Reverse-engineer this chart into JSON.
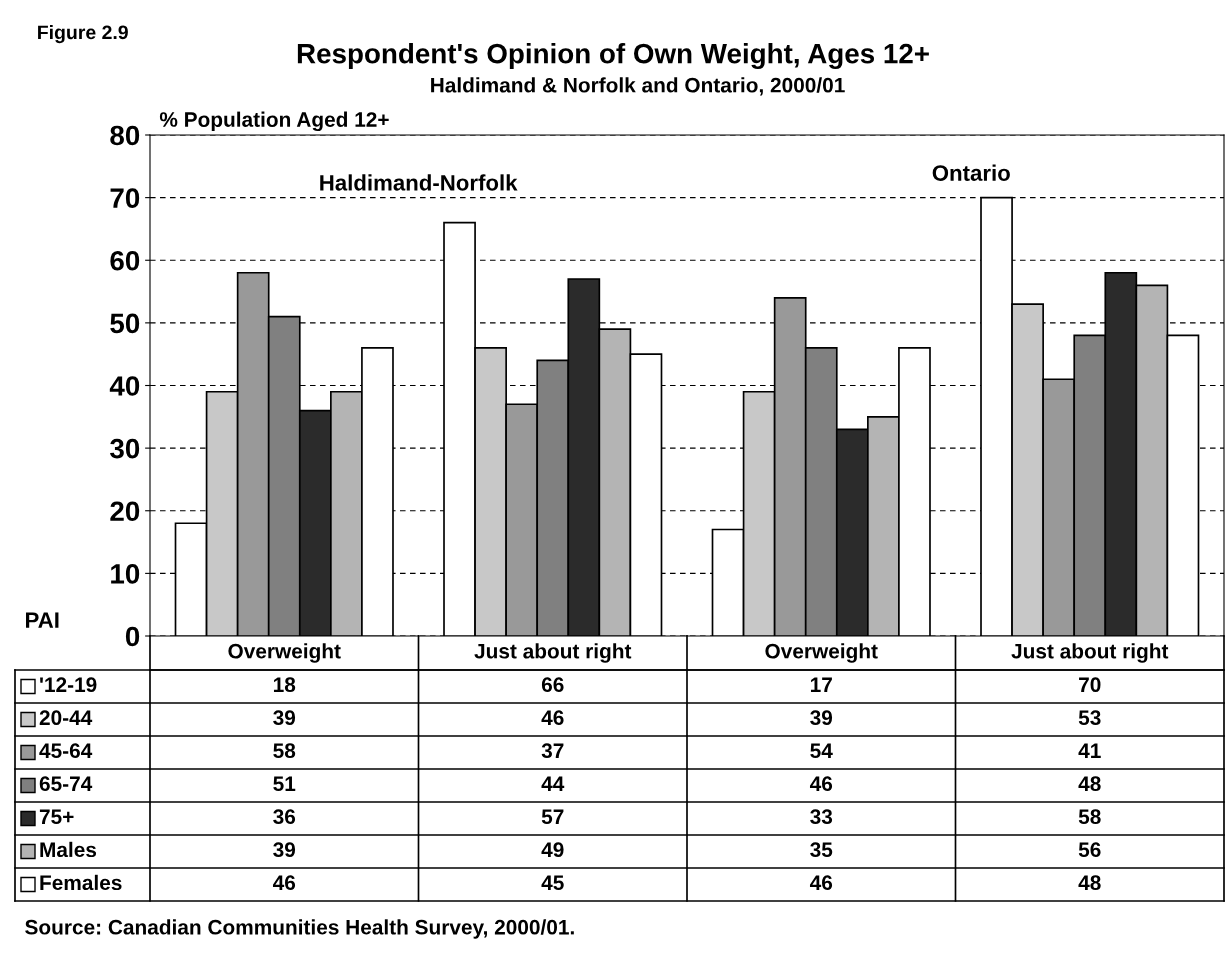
{
  "chart_data": {
    "type": "bar",
    "title": "Respondent's Opinion of Own Weight, Ages 12+",
    "subtitle": "Haldimand & Norfolk and Ontario, 2000/01",
    "ylabel": "% Population Aged 12+",
    "categories": [
      "Overweight",
      "Just about right",
      "Overweight",
      "Just about right"
    ],
    "series": [
      {
        "name": "'12-19",
        "color": "#ffffff",
        "values": [
          18,
          66,
          17,
          70
        ]
      },
      {
        "name": "20-44",
        "color": "#c8c8c8",
        "values": [
          39,
          46,
          39,
          53
        ]
      },
      {
        "name": "45-64",
        "color": "#999999",
        "values": [
          58,
          37,
          54,
          41
        ]
      },
      {
        "name": "65-74",
        "color": "#808080",
        "values": [
          51,
          44,
          46,
          48
        ]
      },
      {
        "name": "75+",
        "color": "#2b2b2b",
        "values": [
          36,
          57,
          33,
          58
        ]
      },
      {
        "name": "Males",
        "color": "#b4b4b4",
        "values": [
          39,
          49,
          35,
          56
        ]
      },
      {
        "name": "Females",
        "color": "#ffffff",
        "values": [
          46,
          45,
          46,
          48
        ]
      }
    ],
    "ylim": [
      0,
      80
    ],
    "yticks": [
      0,
      10,
      20,
      30,
      40,
      50,
      60,
      70,
      80
    ],
    "grid": "y",
    "data_labels": true,
    "legend": "bottom",
    "annotations": [
      "Figure 2.9",
      "Haldimand-Norfolk",
      "Ontario",
      "PAI",
      "Source: Canadian Communities Health Survey, 2000/01."
    ]
  }
}
